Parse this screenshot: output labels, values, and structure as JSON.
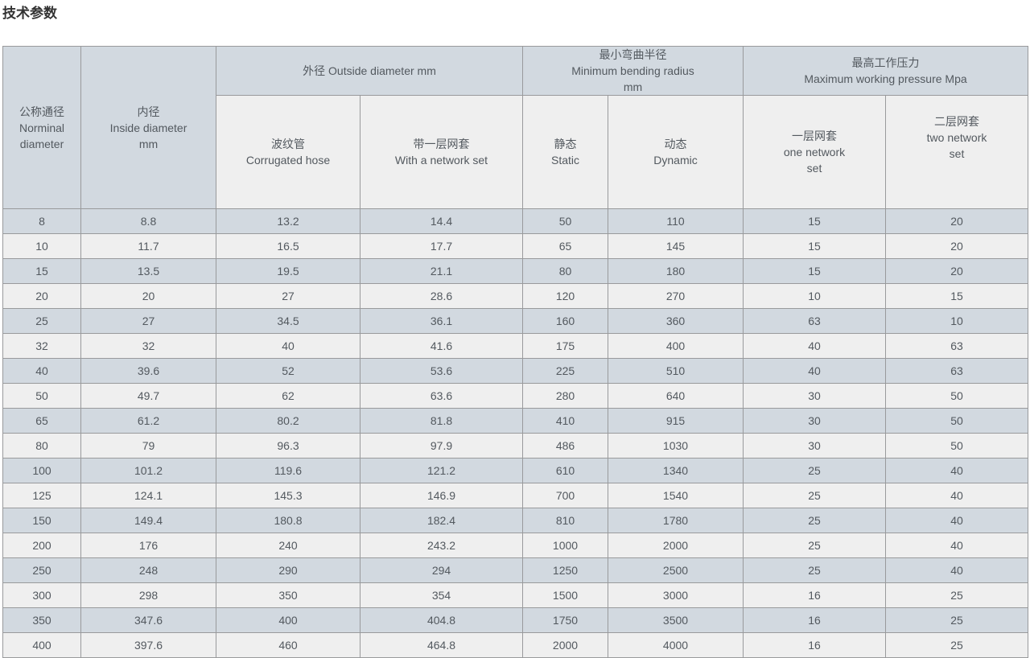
{
  "page_title": "技术参数",
  "table": {
    "header": {
      "nominal": "公称通径\nNorminal\ndiameter",
      "inside": "内径\nInside diameter\nmm",
      "outside_group": "外径 Outside diameter mm",
      "corrugated": "波纹管\nCorrugated hose",
      "with_network": "带一层网套\nWith a network set",
      "bending_group": "最小弯曲半径\nMinimum bending radius\nmm",
      "static": "静态\nStatic",
      "dynamic": "动态\nDynamic",
      "pressure_group": "最高工作压力\nMaximum working pressure Mpa",
      "one_network": "一层网套\none network\nset",
      "two_network": "二层网套\ntwo network\nset"
    },
    "rows": [
      [
        "8",
        "8.8",
        "13.2",
        "14.4",
        "50",
        "110",
        "15",
        "20"
      ],
      [
        "10",
        "11.7",
        "16.5",
        "17.7",
        "65",
        "145",
        "15",
        "20"
      ],
      [
        "15",
        "13.5",
        "19.5",
        "21.1",
        "80",
        "180",
        "15",
        "20"
      ],
      [
        "20",
        "20",
        "27",
        "28.6",
        "120",
        "270",
        "10",
        "15"
      ],
      [
        "25",
        "27",
        "34.5",
        "36.1",
        "160",
        "360",
        "63",
        "10"
      ],
      [
        "32",
        "32",
        "40",
        "41.6",
        "175",
        "400",
        "40",
        "63"
      ],
      [
        "40",
        "39.6",
        "52",
        "53.6",
        "225",
        "510",
        "40",
        "63"
      ],
      [
        "50",
        "49.7",
        "62",
        "63.6",
        "280",
        "640",
        "30",
        "50"
      ],
      [
        "65",
        "61.2",
        "80.2",
        "81.8",
        "410",
        "915",
        "30",
        "50"
      ],
      [
        "80",
        "79",
        "96.3",
        "97.9",
        "486",
        "1030",
        "30",
        "50"
      ],
      [
        "100",
        "101.2",
        "119.6",
        "121.2",
        "610",
        "1340",
        "25",
        "40"
      ],
      [
        "125",
        "124.1",
        "145.3",
        "146.9",
        "700",
        "1540",
        "25",
        "40"
      ],
      [
        "150",
        "149.4",
        "180.8",
        "182.4",
        "810",
        "1780",
        "25",
        "40"
      ],
      [
        "200",
        "176",
        "240",
        "243.2",
        "1000",
        "2000",
        "25",
        "40"
      ],
      [
        "250",
        "248",
        "290",
        "294",
        "1250",
        "2500",
        "25",
        "40"
      ],
      [
        "300",
        "298",
        "350",
        "354",
        "1500",
        "3000",
        "16",
        "25"
      ],
      [
        "350",
        "347.6",
        "400",
        "404.8",
        "1750",
        "3500",
        "16",
        "25"
      ],
      [
        "400",
        "397.6",
        "460",
        "464.8",
        "2000",
        "4000",
        "16",
        "25"
      ]
    ],
    "colors": {
      "row_blue": "#d2d9e0",
      "row_light": "#efefef",
      "border": "#999a9c"
    }
  }
}
